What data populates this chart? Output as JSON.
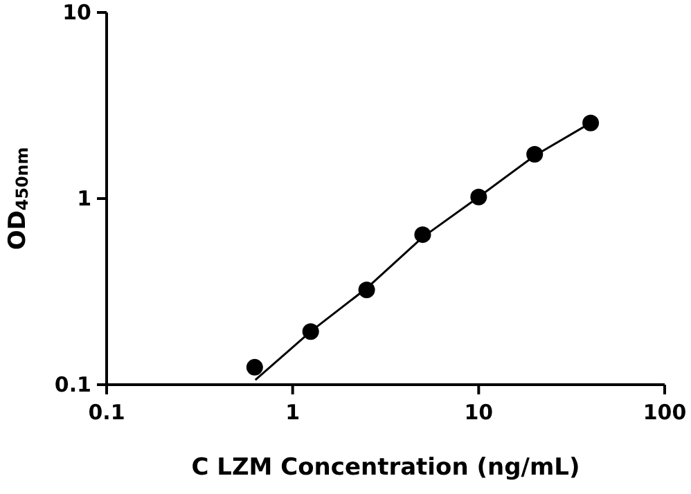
{
  "chart_data": {
    "type": "scatter",
    "xlabel": "C LZM Concentration (ng/mL)",
    "ylabel": "OD$_{450nm}$",
    "log": "xy",
    "xlim": [
      0.1,
      100
    ],
    "xticks": [
      0.1,
      1,
      10,
      100
    ],
    "ylim": [
      0.1,
      10
    ],
    "yticks": [
      0.1,
      1,
      10
    ],
    "grid": false,
    "marker": "circle",
    "series": [
      {
        "color": "#000000",
        "x": [
          0.625,
          1.25,
          2.5,
          5,
          10,
          20,
          40
        ],
        "values": [
          0.124,
          0.193,
          0.323,
          0.64,
          1.02,
          1.73,
          2.55
        ]
      },
      {
        "type": "line",
        "color": "#000000",
        "line_style": "solid",
        "marker": "none",
        "x": [
          0.63,
          1.25,
          2.5,
          5,
          10,
          20,
          40
        ],
        "values": [
          0.106,
          0.193,
          0.33,
          0.62,
          1.02,
          1.7,
          2.55
        ]
      }
    ]
  }
}
